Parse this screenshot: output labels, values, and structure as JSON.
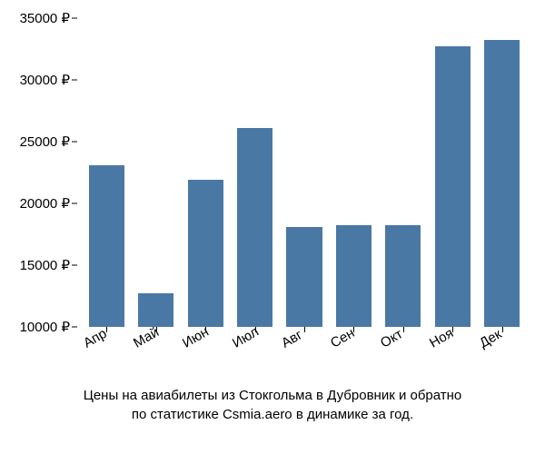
{
  "chart": {
    "type": "bar",
    "categories": [
      "Апр",
      "Май",
      "Июн",
      "Июл",
      "Авг",
      "Сен",
      "Окт",
      "Ноя",
      "Дек"
    ],
    "values": [
      23100,
      12700,
      21900,
      26100,
      18100,
      18200,
      18200,
      32700,
      33200
    ],
    "bar_color": "#4a78a5",
    "background_color": "#ffffff",
    "ylim": [
      10000,
      35000
    ],
    "yticks": [
      10000,
      15000,
      20000,
      25000,
      30000,
      35000
    ],
    "ytick_labels": [
      "10000 ₽",
      "15000 ₽",
      "20000 ₽",
      "25000 ₽",
      "30000 ₽",
      "35000 ₽"
    ],
    "bar_width": 0.72,
    "label_fontsize": 15,
    "label_color": "#000000",
    "x_label_rotation": -30,
    "tick_color": "#000000"
  },
  "caption": {
    "line1": "Цены на авиабилеты из Стокгольма в Дубровник и обратно",
    "line2": "по статистике Csmia.aero в динамике за год.",
    "fontsize": 15,
    "color": "#000000"
  }
}
